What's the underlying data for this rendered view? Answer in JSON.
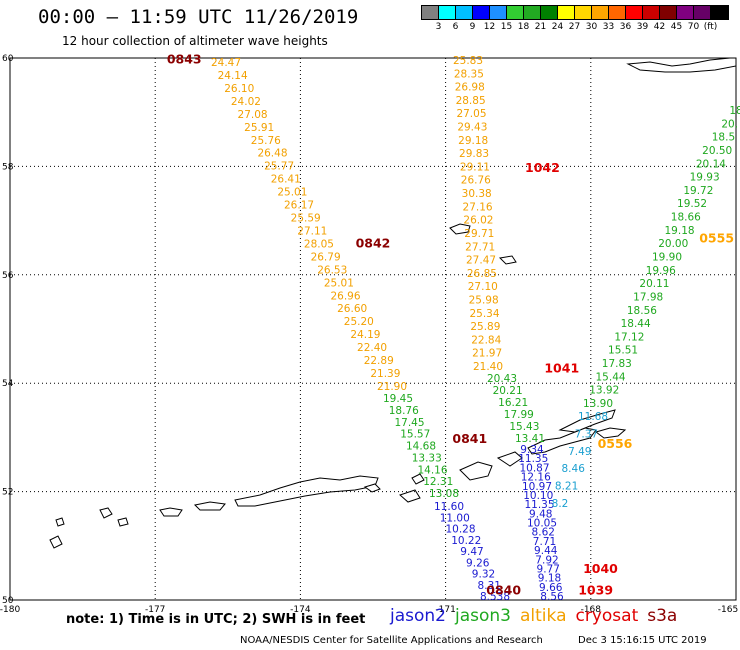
{
  "header": {
    "title": "00:00 — 11:59 UTC 11/26/2019",
    "subtitle": "12 hour collection of altimeter wave heights"
  },
  "colorbar": {
    "colors": [
      "#808080",
      "#00ffff",
      "#00bfff",
      "#0000ff",
      "#1e90ff",
      "#32cd32",
      "#22aa22",
      "#008000",
      "#ffff00",
      "#ffd700",
      "#ffa500",
      "#ff6600",
      "#ff0000",
      "#cc0000",
      "#800000",
      "#800080",
      "#660066",
      "#000000"
    ],
    "labels": [
      "3",
      "6",
      "9",
      "12",
      "15",
      "18",
      "21",
      "24",
      "27",
      "30",
      "33",
      "36",
      "39",
      "42",
      "45",
      "70",
      "(ft)"
    ]
  },
  "axes": {
    "lon_ticks": [
      "-180",
      "-177",
      "-174",
      "-171",
      "-168",
      "-165"
    ],
    "lat_ticks": [
      "60",
      "58",
      "56",
      "54",
      "52",
      "50"
    ]
  },
  "note": "note: 1) Time is in UTC; 2) SWH is in feet",
  "legend": [
    {
      "name": "jason2",
      "color": "#1a1ad0"
    },
    {
      "name": "jason3",
      "color": "#1fa81f"
    },
    {
      "name": "altika",
      "color": "#f2a000"
    },
    {
      "name": "cryosat",
      "color": "#e00000"
    },
    {
      "name": "s3a",
      "color": "#8b0000"
    }
  ],
  "credit": "NOAA/NESDIS Center for Satellite Applications and Research",
  "credit_date": "Dec  3 15:16:15 UTC 2019",
  "time_labels": [
    {
      "text": "0843",
      "lon": -176.4,
      "lat": 59.9,
      "color": "#8b0000"
    },
    {
      "text": "0842",
      "lon": -172.5,
      "lat": 56.5,
      "color": "#8b0000"
    },
    {
      "text": "0841",
      "lon": -170.5,
      "lat": 52.9,
      "color": "#8b0000"
    },
    {
      "text": "0840",
      "lon": -169.8,
      "lat": 50.1,
      "color": "#8b0000"
    },
    {
      "text": "1042",
      "lon": -169.0,
      "lat": 57.9,
      "color": "#e00000"
    },
    {
      "text": "1041",
      "lon": -168.6,
      "lat": 54.2,
      "color": "#e00000"
    },
    {
      "text": "1040",
      "lon": -167.8,
      "lat": 50.5,
      "color": "#e00000"
    },
    {
      "text": "1039",
      "lon": -167.9,
      "lat": 50.1,
      "color": "#e00000"
    },
    {
      "text": "0556",
      "lon": -167.5,
      "lat": 52.8,
      "color": "#ffa500"
    },
    {
      "text": "0555",
      "lon": -165.4,
      "lat": 56.6,
      "color": "#ffa500"
    }
  ],
  "tracks": {
    "altika_left": [
      "24.47",
      "24.14",
      "26.10",
      "24.02",
      "27.08",
      "25.91",
      "25.76",
      "26.48",
      "25.77",
      "26.41",
      "25.01",
      "26.17",
      "25.59",
      "27.11",
      "28.05",
      "26.79",
      "26.53",
      "25.01",
      "26.96",
      "26.60",
      "25.20",
      "24.19",
      "22.40",
      "22.89",
      "21.39",
      "21.90"
    ],
    "jason3_left": [
      "19.45",
      "18.76",
      "17.45",
      "15.57",
      "14.68",
      "13.33",
      "14.16",
      "12.31",
      "13.08"
    ],
    "jason2_left": [
      "11.60",
      "11.00",
      "10.28",
      "10.22",
      "9.47",
      "9.26",
      "9.32",
      "8.31",
      "8.538"
    ],
    "altika_mid": [
      "25.83",
      "28.35",
      "26.98",
      "28.85",
      "27.05",
      "29.43",
      "29.18",
      "29.83",
      "29.11",
      "26.76",
      "30.38",
      "27.16",
      "26.02",
      "29.71",
      "27.71",
      "27.47",
      "26.85",
      "27.10",
      "25.98",
      "25.34",
      "25.89",
      "22.84",
      "21.97",
      "21.40"
    ],
    "jason3_mid": [
      "20.43",
      "20.21",
      "16.21",
      "17.99",
      "15.43",
      "13.41"
    ],
    "jason2_mid": [
      "9.34",
      "11.35",
      "10.87",
      "12.16",
      "10.97",
      "10.10",
      "11.35",
      "9.48",
      "10.05",
      "8.62",
      "7.71",
      "9.44",
      "7.92",
      "9.77",
      "9.18",
      "9.66",
      "8.56"
    ],
    "jason3_right": [
      "18",
      "20.",
      "18.5",
      "20.50",
      "20.14",
      "19.93",
      "19.72",
      "19.52",
      "18.66",
      "19.18",
      "20.00",
      "19.90",
      "19.96",
      "20.11",
      "17.98",
      "18.56",
      "18.44",
      "17.12",
      "15.51",
      "17.83",
      "15.44",
      "13.92",
      "13.90"
    ],
    "jason2_right": [
      "11.68",
      "7.37",
      "7.49",
      "8.46",
      "8.21",
      "8.2"
    ]
  }
}
